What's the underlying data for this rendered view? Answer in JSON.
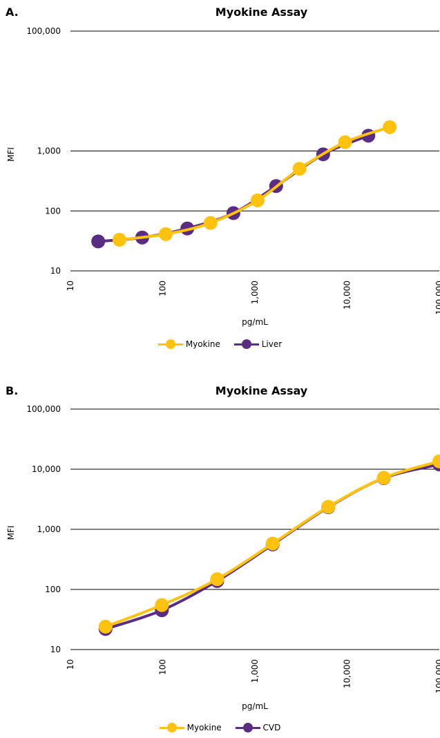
{
  "colors": {
    "myokine": "#FFC20E",
    "secondary": "#5B2C83",
    "grid": "#000000"
  },
  "panels": [
    {
      "letter": "A.",
      "title": "Myokine Assay",
      "legend": [
        "Myokine",
        "Liver"
      ]
    },
    {
      "letter": "B.",
      "title": "Myokine Assay",
      "legend": [
        "Myokine",
        "CVD"
      ]
    }
  ],
  "chart_data": [
    {
      "type": "line",
      "title": "Myokine Assay",
      "xlabel": "pg/mL",
      "ylabel": "MFI",
      "x_scale": "log",
      "y_scale": "log",
      "xlim": [
        10,
        100000
      ],
      "ylim": [
        10,
        100000
      ],
      "x_ticks": [
        "10",
        "100",
        "1,000",
        "10,000",
        "100,000"
      ],
      "y_ticks": [
        "10",
        "100",
        "1,000",
        "100,000"
      ],
      "grid": "horizontal",
      "legend_position": "bottom",
      "series": [
        {
          "name": "Myokine",
          "color": "#FFC20E",
          "x": [
            34,
            108,
            330,
            1070,
            3050,
            9500,
            29000
          ],
          "y": [
            33,
            41,
            63,
            150,
            505,
            1400,
            2500
          ]
        },
        {
          "name": "Liver",
          "color": "#5B2C83",
          "x": [
            20,
            60,
            185,
            585,
            1700,
            5500,
            17000
          ],
          "y": [
            31,
            36,
            51,
            92,
            260,
            880,
            1800
          ]
        }
      ]
    },
    {
      "type": "line",
      "title": "Myokine Assay",
      "xlabel": "pg/mL",
      "ylabel": "MFI",
      "x_scale": "log",
      "y_scale": "log",
      "xlim": [
        10,
        100000
      ],
      "ylim": [
        10,
        100000
      ],
      "x_ticks": [
        "10",
        "100",
        "1,000",
        "10,000",
        "100,000"
      ],
      "y_ticks": [
        "10",
        "100",
        "1,000",
        "10,000",
        "100,000"
      ],
      "grid": "horizontal",
      "legend_position": "bottom",
      "series": [
        {
          "name": "Myokine",
          "color": "#FFC20E",
          "x": [
            24,
            98,
            390,
            1560,
            6250,
            25000,
            100000
          ],
          "y": [
            24,
            55,
            148,
            580,
            2370,
            7200,
            13500
          ]
        },
        {
          "name": "CVD",
          "color": "#5B2C83",
          "x": [
            24,
            98,
            390,
            1560,
            6250,
            25000,
            100000
          ],
          "y": [
            22,
            45,
            138,
            560,
            2330,
            7100,
            12000
          ]
        }
      ]
    }
  ]
}
